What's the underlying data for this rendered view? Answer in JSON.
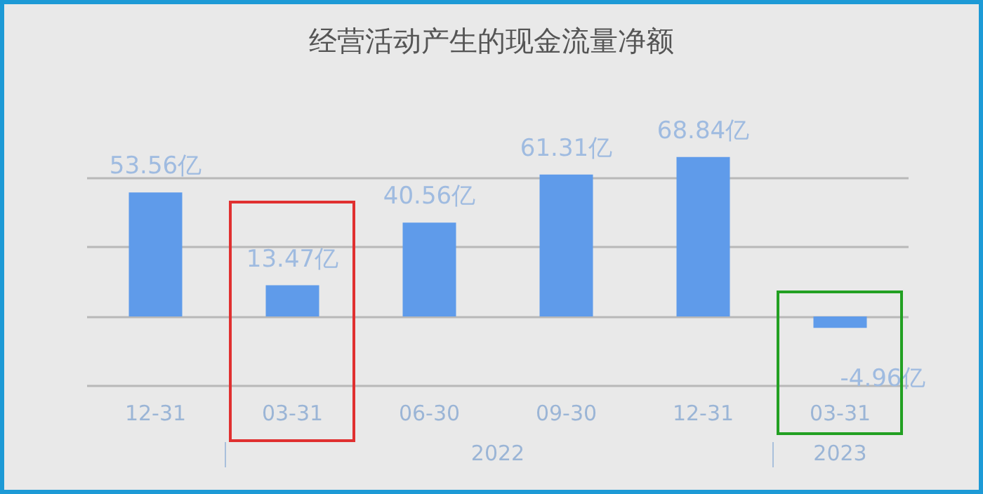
{
  "chart_data": {
    "type": "bar",
    "title": "经营活动产生的现金流量净额",
    "categories": [
      "12-31",
      "03-31",
      "06-30",
      "09-30",
      "12-31",
      "03-31"
    ],
    "values": [
      53.56,
      13.47,
      40.56,
      61.31,
      68.84,
      -4.96
    ],
    "value_labels": [
      "53.56亿",
      "13.47亿",
      "40.56亿",
      "61.31亿",
      "68.84亿",
      "-4.96亿"
    ],
    "color": "#5f9bea",
    "grid": "y",
    "tick_labels": "x",
    "annotations": [
      "2022",
      "2023"
    ]
  }
}
